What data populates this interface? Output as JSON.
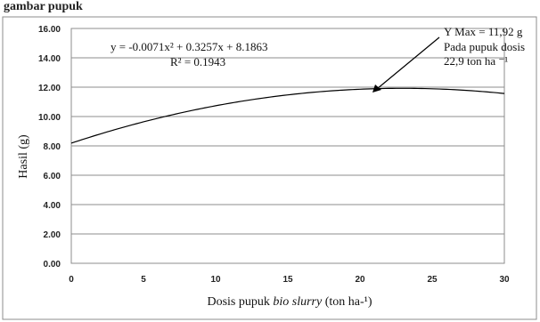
{
  "page": {
    "top_text": "gambar pupuk"
  },
  "chart_data": {
    "type": "line",
    "xlabel": "Dosis pupuk bio slurry (ton ha-¹)",
    "xlabel_parts": {
      "before": "Dosis pupuk ",
      "italic": "bio slurry",
      "after": " (ton ha-¹)"
    },
    "ylabel": "Hasil (g)",
    "xlim": [
      0,
      30
    ],
    "ylim": [
      0,
      16
    ],
    "xticks": [
      "0",
      "5",
      "10",
      "15",
      "20",
      "25",
      "30"
    ],
    "yticks": [
      "0.00",
      "2.00",
      "4.00",
      "6.00",
      "8.00",
      "10.00",
      "12.00",
      "14.00",
      "16.00"
    ],
    "grid": "horizontal",
    "series": [
      {
        "equation_coeffs": {
          "a": -0.0071,
          "b": 0.3257,
          "c": 8.1863
        },
        "x": [
          0,
          5,
          10,
          15,
          20,
          25,
          30
        ],
        "y": [
          8.19,
          9.64,
          10.73,
          11.47,
          11.86,
          11.89,
          11.58
        ]
      }
    ],
    "annotations": {
      "equation": "y = -0.0071x² + 0.3257x + 8.1863",
      "r2": "R² = 0.1943",
      "max_line1": "Y Max = 11,92 g",
      "max_line2": "Pada pupuk dosis",
      "max_line3": "22,9 ton ha ⁻¹"
    },
    "colors": {
      "curve": "#000000",
      "grid": "#8c8c8c",
      "border": "#8c8c8c"
    }
  }
}
